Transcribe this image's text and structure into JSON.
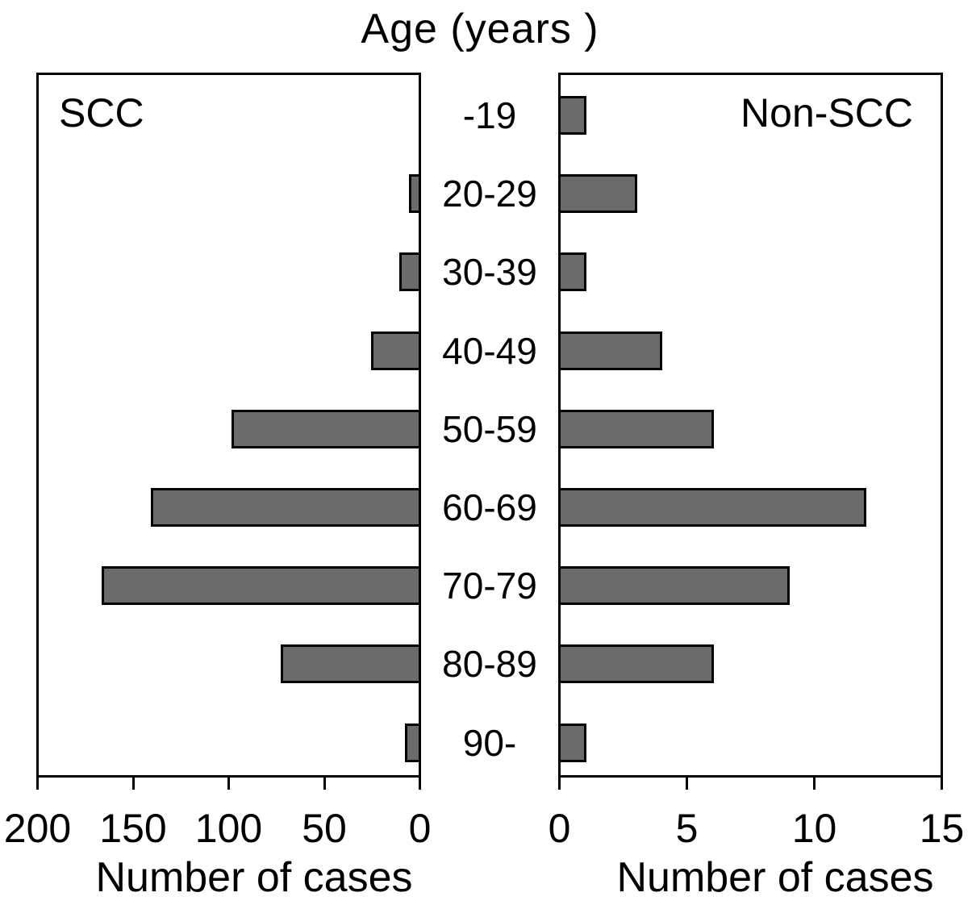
{
  "chart_data": {
    "type": "bar",
    "orientation": "horizontal",
    "layout": "back-to-back pyramid, shared category axis in center, grid off, no legend",
    "title": "Age (years )",
    "categories": [
      "-19",
      "20-29",
      "30-39",
      "40-49",
      "50-59",
      "60-69",
      "70-79",
      "80-89",
      "90-"
    ],
    "series": [
      {
        "name": "SCC",
        "values": [
          0,
          5,
          10,
          25,
          98,
          140,
          166,
          72,
          7
        ],
        "axis": {
          "xlabel": "Number of cases",
          "direction": "left",
          "xlim": [
            200,
            0
          ],
          "ticks": [
            200,
            150,
            100,
            50,
            0
          ],
          "tick_labels": [
            "200",
            "150",
            "100",
            "50",
            "0"
          ]
        }
      },
      {
        "name": "Non-SCC",
        "values": [
          1,
          3,
          1,
          4,
          6,
          12,
          9,
          6,
          1
        ],
        "axis": {
          "xlabel": "Number of cases",
          "direction": "right",
          "xlim": [
            0,
            15
          ],
          "ticks": [
            0,
            5,
            10,
            15
          ],
          "tick_labels": [
            "0",
            "5",
            "10",
            "15"
          ]
        }
      }
    ],
    "colors": {
      "bar_fill": "#6b6b6b",
      "bar_outline": "#000000",
      "axis": "#000000",
      "background": "#ffffff"
    }
  }
}
